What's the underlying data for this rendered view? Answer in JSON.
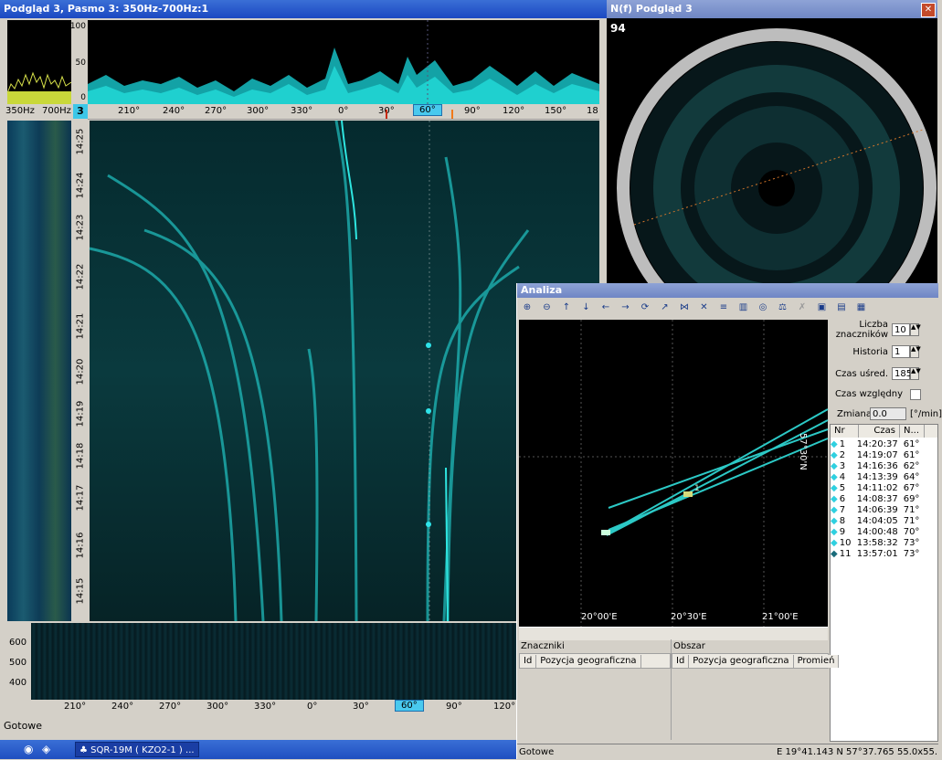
{
  "main_window": {
    "title": "Podgląd 3, Pasmo 3: 350Hz-700Hz:1",
    "spectrum_scale": [
      "100",
      "50",
      "0"
    ],
    "freq_labels": [
      "350Hz",
      "700Hz"
    ],
    "band_number": "3",
    "bearing_ticks": [
      "210°",
      "240°",
      "270°",
      "300°",
      "330°",
      "0°",
      "30°",
      "60°",
      "90°",
      "120°",
      "150°",
      "18"
    ],
    "time_labels": [
      "14:25",
      "14:24",
      "14:23",
      "14:22",
      "14:21",
      "14:20",
      "14:19",
      "14:18",
      "14:17",
      "14:16",
      "14:15"
    ],
    "lofar_scale": [
      "600",
      "500",
      "400"
    ],
    "bottom_ticks": [
      "210°",
      "240°",
      "270°",
      "300°",
      "330°",
      "0°",
      "30°",
      "60°",
      "90°",
      "120°"
    ],
    "status": "Gotowe"
  },
  "polar_window": {
    "title": "N(f) Podgląd 3",
    "value": "94"
  },
  "analysis_window": {
    "title": "Analiza",
    "toolbar": [
      "zoom-in",
      "zoom-out",
      "pan-up",
      "pan-down",
      "pan-left",
      "pan-right",
      "refresh",
      "tool-1",
      "tool-2",
      "tool-3",
      "tool-4",
      "chart",
      "tool-5",
      "tool-6",
      "tool-7",
      "view-1",
      "view-2",
      "view-3"
    ],
    "map_labels": {
      "lon1": "20°00'E",
      "lon2": "20°30'E",
      "lon3": "21°00'E",
      "lat": "57°30'N",
      "marker": "1"
    },
    "controls": {
      "liczba_label": "Liczba\nznaczników",
      "liczba_value": "10",
      "historia_label": "Historia",
      "historia_value": "1",
      "czas_label": "Czas uśred.",
      "czas_value": "185",
      "czas_wzgl_label": "Czas względny",
      "zmiana_label": "Zmiana",
      "zmiana_value": "0.0",
      "zmiana_unit": "[°/min]"
    },
    "list_headers": [
      "Nr",
      "Czas",
      "N..."
    ],
    "list_rows": [
      {
        "nr": "1",
        "czas": "14:20:37",
        "n": "61°"
      },
      {
        "nr": "2",
        "czas": "14:19:07",
        "n": "61°"
      },
      {
        "nr": "3",
        "czas": "14:16:36",
        "n": "62°"
      },
      {
        "nr": "4",
        "czas": "14:13:39",
        "n": "64°"
      },
      {
        "nr": "5",
        "czas": "14:11:02",
        "n": "67°"
      },
      {
        "nr": "6",
        "czas": "14:08:37",
        "n": "69°"
      },
      {
        "nr": "7",
        "czas": "14:06:39",
        "n": "71°"
      },
      {
        "nr": "8",
        "czas": "14:04:05",
        "n": "71°"
      },
      {
        "nr": "9",
        "czas": "14:00:48",
        "n": "70°"
      },
      {
        "nr": "10",
        "czas": "13:58:32",
        "n": "73°"
      },
      {
        "nr": "11",
        "czas": "13:57:01",
        "n": "73°"
      }
    ],
    "znaczniki": {
      "label": "Znaczniki",
      "col_id": "Id",
      "col_pos": "Pozycja geograficzna"
    },
    "obszar": {
      "label": "Obszar",
      "col_id": "Id",
      "col_pos": "Pozycja geograficzna",
      "col_r": "Promień"
    },
    "status": "Gotowe",
    "coords": "E 19°41.143  N 57°37.765",
    "scale": "55.0x55."
  },
  "taskbar": {
    "task_label": "SQR-19M ( KZO2-1 ) ..."
  },
  "colors": {
    "teal": "#2ad4d0",
    "title_blue": "#2456c8",
    "highlight": "#49c9ee"
  }
}
